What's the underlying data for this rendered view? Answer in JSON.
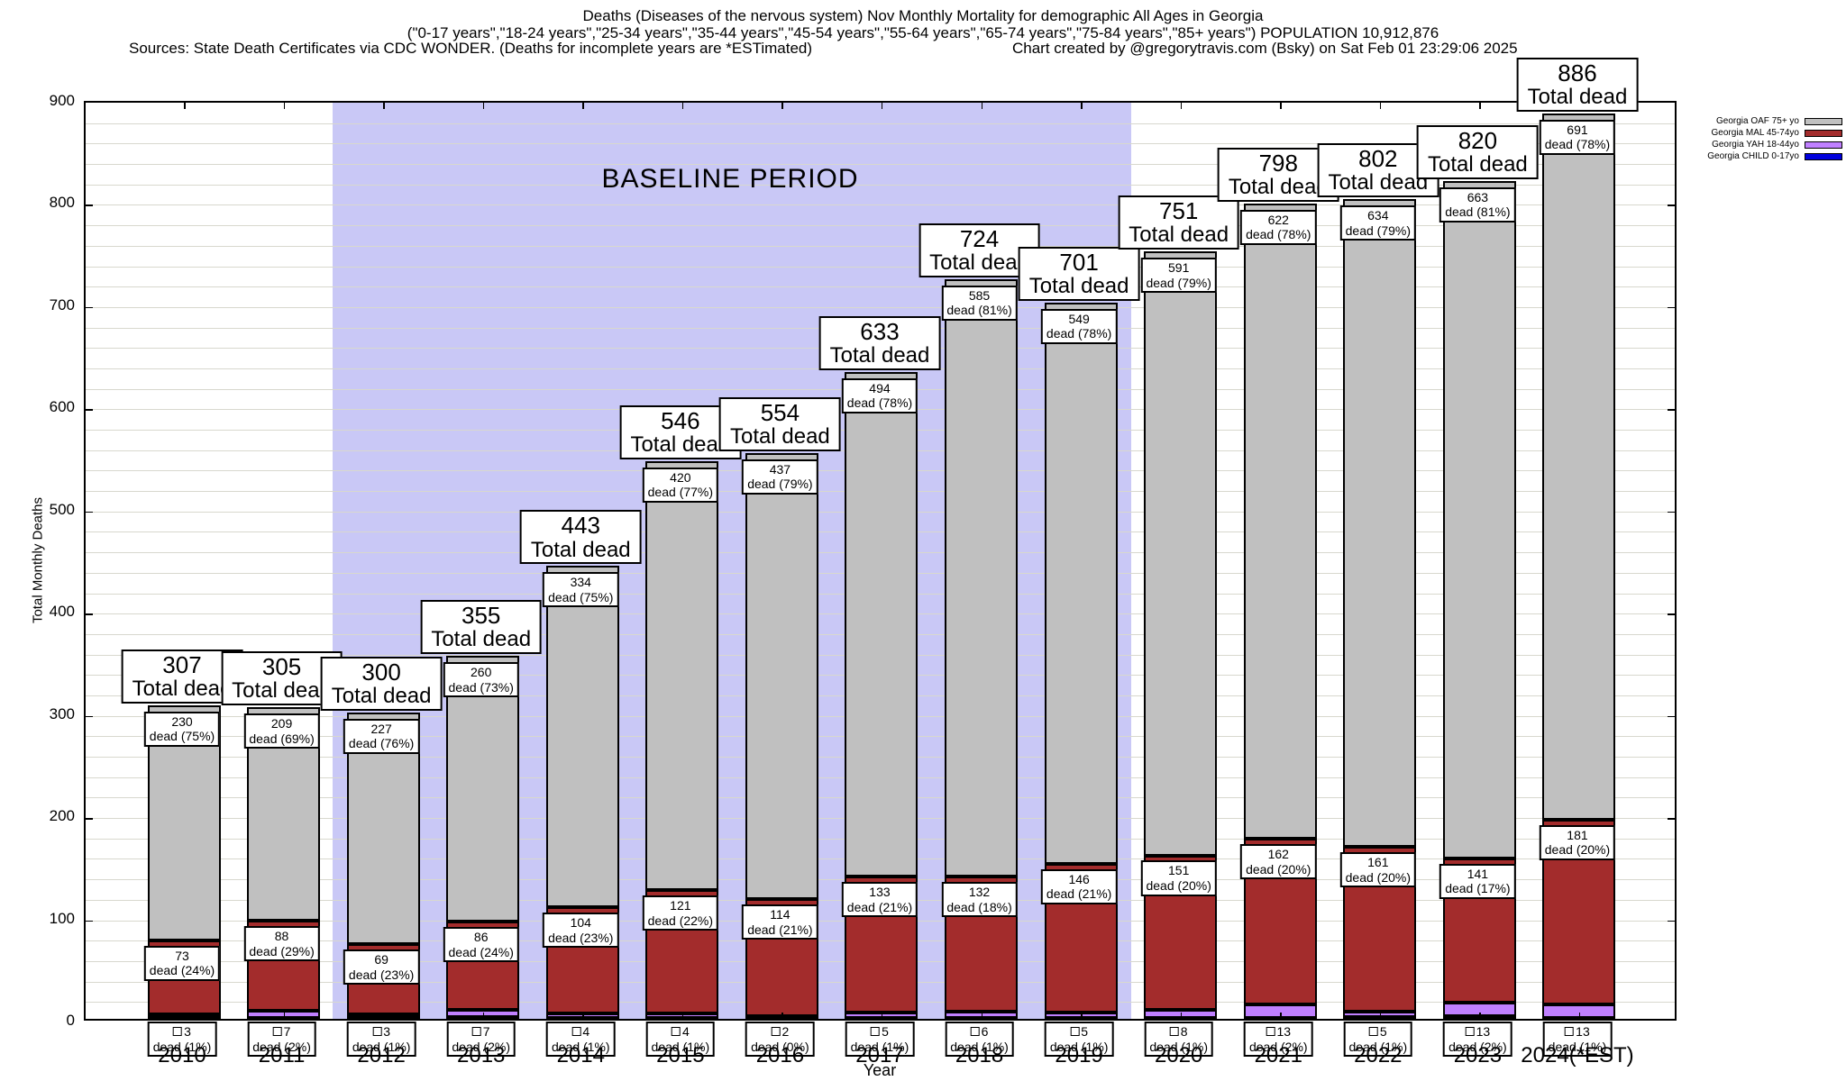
{
  "header": {
    "line1": "Deaths (Diseases of the nervous system) Nov Monthly Mortality for demographic All Ages in Georgia",
    "line2": "(\"0-17 years\",\"18-24 years\",\"25-34 years\",\"35-44 years\",\"45-54 years\",\"55-64 years\",\"65-74 years\",\"75-84 years\",\"85+ years\") POPULATION 10,912,876",
    "sources": "Sources: State Death Certificates via CDC WONDER. (Deaths for incomplete years are *ESTimated)",
    "credit": "Chart created by @gregorytravis.com (Bsky) on Sat Feb 01 23:29:06 2025"
  },
  "legend": [
    {
      "label": "Georgia OAF 75+ yo",
      "color": "#c0c0c0"
    },
    {
      "label": "Georgia MAL 45-74yo",
      "color": "#a32c2c"
    },
    {
      "label": "Georgia YAH 18-44yo",
      "color": "#c080ff"
    },
    {
      "label": "Georgia CHILD 0-17yo",
      "color": "#0000dd"
    }
  ],
  "baseline": {
    "label": "BASELINE PERIOD",
    "start_year": "2012",
    "end_year": "2019",
    "color": "#c9c8f6"
  },
  "axes": {
    "ylabel": "Total Monthly Deaths",
    "xlabel": "Year",
    "ymin": 0,
    "ymax": 900,
    "ytick_step": 100,
    "minor_step": 20
  },
  "labels": {
    "total_dead": "Total dead",
    "dead": "dead"
  },
  "chart_data": {
    "type": "bar",
    "stacked": true,
    "ylim": [
      0,
      900
    ],
    "grid": true,
    "legend_position": "top-right",
    "categories": [
      "2010",
      "2011",
      "2012",
      "2013",
      "2014",
      "2015",
      "2016",
      "2017",
      "2018",
      "2019",
      "2020",
      "2021",
      "2022",
      "2023",
      "2024(*EST)"
    ],
    "series_names": [
      "Georgia OAF 75+ yo",
      "Georgia MAL 45-74yo",
      "Georgia YAH 18-44yo",
      "Georgia CHILD 0-17yo"
    ],
    "bars": [
      {
        "year": "2010",
        "total": 307,
        "oaf": 230,
        "oaf_pct": "(75%)",
        "mal": 73,
        "mal_pct": "(24%)",
        "yah": 3,
        "yah_pct": "(1%)"
      },
      {
        "year": "2011",
        "total": 305,
        "oaf": 209,
        "oaf_pct": "(69%)",
        "mal": 88,
        "mal_pct": "(29%)",
        "yah": 7,
        "yah_pct": "(2%)"
      },
      {
        "year": "2012",
        "total": 300,
        "oaf": 227,
        "oaf_pct": "(76%)",
        "mal": 69,
        "mal_pct": "(23%)",
        "yah": 3,
        "yah_pct": "(1%)"
      },
      {
        "year": "2013",
        "total": 355,
        "oaf": 260,
        "oaf_pct": "(73%)",
        "mal": 86,
        "mal_pct": "(24%)",
        "yah": 7,
        "yah_pct": "(2%)"
      },
      {
        "year": "2014",
        "total": 443,
        "oaf": 334,
        "oaf_pct": "(75%)",
        "mal": 104,
        "mal_pct": "(23%)",
        "yah": 4,
        "yah_pct": "(1%)"
      },
      {
        "year": "2015",
        "total": 546,
        "oaf": 420,
        "oaf_pct": "(77%)",
        "mal": 121,
        "mal_pct": "(22%)",
        "yah": 4,
        "yah_pct": "(1%)"
      },
      {
        "year": "2016",
        "total": 554,
        "oaf": 437,
        "oaf_pct": "(79%)",
        "mal": 114,
        "mal_pct": "(21%)",
        "yah": 2,
        "yah_pct": "(0%)"
      },
      {
        "year": "2017",
        "total": 633,
        "oaf": 494,
        "oaf_pct": "(78%)",
        "mal": 133,
        "mal_pct": "(21%)",
        "yah": 5,
        "yah_pct": "(1%)"
      },
      {
        "year": "2018",
        "total": 724,
        "oaf": 585,
        "oaf_pct": "(81%)",
        "mal": 132,
        "mal_pct": "(18%)",
        "yah": 6,
        "yah_pct": "(1%)"
      },
      {
        "year": "2019",
        "total": 701,
        "oaf": 549,
        "oaf_pct": "(78%)",
        "mal": 146,
        "mal_pct": "(21%)",
        "yah": 5,
        "yah_pct": "(1%)"
      },
      {
        "year": "2020",
        "total": 751,
        "oaf": 591,
        "oaf_pct": "(79%)",
        "mal": 151,
        "mal_pct": "(20%)",
        "yah": 8,
        "yah_pct": "(1%)"
      },
      {
        "year": "2021",
        "total": 798,
        "oaf": 622,
        "oaf_pct": "(78%)",
        "mal": 162,
        "mal_pct": "(20%)",
        "yah": 13,
        "yah_pct": "(2%)"
      },
      {
        "year": "2022",
        "total": 802,
        "oaf": 634,
        "oaf_pct": "(79%)",
        "mal": 161,
        "mal_pct": "(20%)",
        "yah": 5,
        "yah_pct": "(1%)"
      },
      {
        "year": "2023",
        "total": 820,
        "oaf": 663,
        "oaf_pct": "(81%)",
        "mal": 141,
        "mal_pct": "(17%)",
        "yah": 13,
        "yah_pct": "(2%)"
      },
      {
        "year": "2024(*EST)",
        "total": 886,
        "oaf": 691,
        "oaf_pct": "(78%)",
        "mal": 181,
        "mal_pct": "(20%)",
        "yah": 13,
        "yah_pct": "(1%)"
      }
    ]
  }
}
